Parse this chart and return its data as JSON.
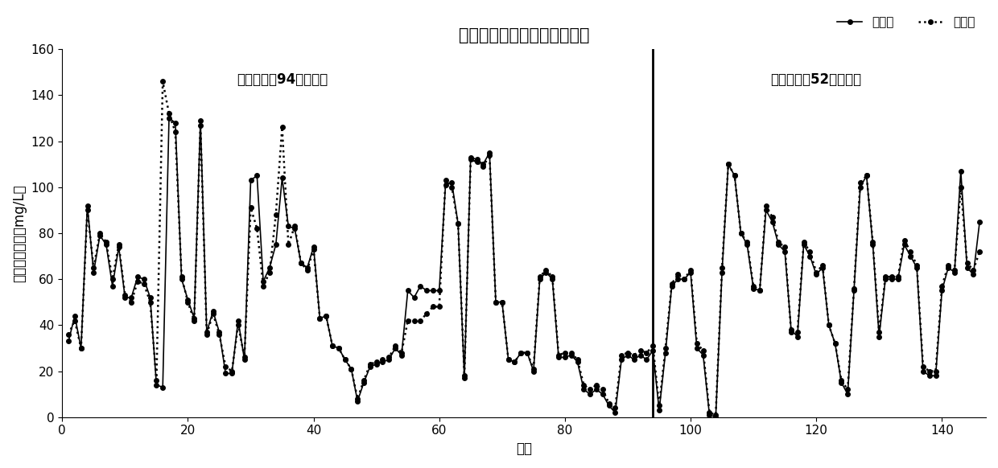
{
  "title": "人工神经网络仿真与验证过程",
  "xlabel": "点位",
  "ylabel": "出水总氮浓度（mg/L）",
  "legend_measured": "实测值",
  "legend_predicted": "预测值",
  "annotation_sim": "仿真过程（94个点位）",
  "annotation_val": "验证过程（52个点位）",
  "divider_x": 94,
  "ylim": [
    0,
    160
  ],
  "xlim": [
    0,
    147
  ],
  "yticks": [
    0,
    20,
    40,
    60,
    80,
    100,
    120,
    140,
    160
  ],
  "xticks": [
    0,
    20,
    40,
    60,
    80,
    100,
    120,
    140
  ],
  "measured": [
    33,
    44,
    30,
    92,
    63,
    79,
    75,
    57,
    74,
    52,
    52,
    61,
    60,
    52,
    14,
    13,
    130,
    128,
    60,
    51,
    43,
    129,
    37,
    46,
    37,
    19,
    19,
    42,
    25,
    103,
    105,
    59,
    65,
    75,
    104,
    83,
    82,
    67,
    65,
    74,
    43,
    44,
    31,
    30,
    25,
    21,
    7,
    15,
    22,
    23,
    24,
    25,
    30,
    27,
    55,
    52,
    57,
    55,
    55,
    55,
    101,
    102,
    84,
    17,
    113,
    112,
    110,
    115,
    50,
    50,
    25,
    24,
    28,
    28,
    20,
    60,
    63,
    60,
    26,
    26,
    27,
    24,
    12,
    10,
    12,
    10,
    5,
    2,
    25,
    27,
    25,
    27,
    25,
    29
  ],
  "predicted": [
    36,
    42,
    30,
    90,
    65,
    80,
    76,
    60,
    75,
    53,
    50,
    59,
    58,
    50,
    16,
    146,
    132,
    124,
    61,
    50,
    42,
    127,
    36,
    45,
    36,
    22,
    20,
    40,
    26,
    91,
    82,
    57,
    63,
    88,
    126,
    75,
    83,
    67,
    64,
    73,
    43,
    44,
    31,
    30,
    25,
    21,
    8,
    16,
    23,
    24,
    25,
    26,
    31,
    28,
    42,
    42,
    42,
    45,
    48,
    48,
    103,
    100,
    84,
    18,
    112,
    111,
    109,
    114,
    50,
    50,
    25,
    24,
    28,
    28,
    21,
    61,
    64,
    61,
    27,
    28,
    28,
    25,
    14,
    12,
    14,
    12,
    6,
    4,
    27,
    28,
    27,
    29,
    28,
    31
  ],
  "measured_val": [
    3,
    28,
    57,
    60,
    60,
    63,
    30,
    27,
    1,
    0,
    63,
    110,
    105,
    80,
    75,
    56,
    55,
    90,
    85,
    75,
    72,
    38,
    35,
    75,
    70,
    62,
    65,
    40,
    32,
    15,
    10,
    55,
    100,
    105,
    75,
    35,
    60,
    60,
    60,
    75,
    70,
    65,
    20,
    18,
    18,
    55,
    65,
    63,
    107,
    65,
    62,
    85
  ],
  "predicted_val": [
    5,
    30,
    58,
    62,
    60,
    64,
    32,
    29,
    2,
    1,
    65,
    110,
    105,
    80,
    76,
    57,
    55,
    92,
    87,
    76,
    74,
    37,
    37,
    76,
    72,
    63,
    66,
    40,
    32,
    16,
    12,
    56,
    102,
    105,
    76,
    37,
    61,
    61,
    61,
    77,
    72,
    66,
    22,
    20,
    20,
    57,
    66,
    64,
    100,
    67,
    64,
    72
  ],
  "line_color": "#000000",
  "background_color": "#ffffff",
  "title_fontsize": 15,
  "label_fontsize": 12,
  "tick_fontsize": 11,
  "annotation_fontsize": 12
}
